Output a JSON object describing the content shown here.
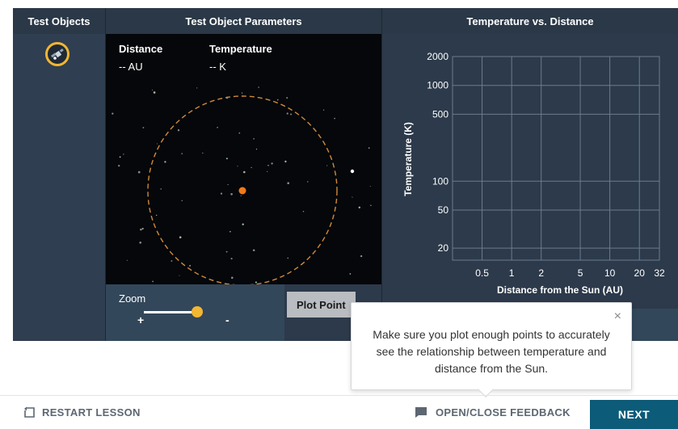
{
  "headers": {
    "test_objects": "Test Objects",
    "parameters": "Test Object Parameters",
    "chart": "Temperature vs. Distance"
  },
  "parameters": {
    "distance_label": "Distance",
    "distance_value": "-- AU",
    "temperature_label": "Temperature",
    "temperature_value": "-- K"
  },
  "zoom": {
    "label": "Zoom",
    "plus": "+",
    "minus": "-",
    "level": 0.92
  },
  "plot_button": "Plot Point",
  "chart_data": {
    "type": "scatter",
    "title": "",
    "xlabel": "Distance from the Sun (AU)",
    "ylabel": "Temperature (K)",
    "x_scale": "log",
    "y_scale": "log",
    "xlim": [
      0.25,
      32
    ],
    "ylim": [
      15,
      2000
    ],
    "x_ticks": [
      0.5,
      1,
      2,
      5,
      10,
      20,
      32
    ],
    "x_tick_labels": [
      "0.5",
      "1",
      "2",
      "5",
      "10",
      "20",
      "32"
    ],
    "y_ticks": [
      20,
      50,
      100,
      500,
      1000,
      2000
    ],
    "y_tick_labels": [
      "20",
      "50",
      "100",
      "500",
      "1000",
      "2000"
    ],
    "grid": true,
    "series": []
  },
  "tooltip": {
    "text": "Make sure you plot enough points to accurately see the relationship between temperature and distance from the Sun.",
    "close": "×"
  },
  "footer": {
    "restart": "RESTART LESSON",
    "feedback": "OPEN/CLOSE FEEDBACK",
    "next": "NEXT"
  },
  "colors": {
    "accent": "#f2b632",
    "panel": "#2c3a4b",
    "next_button": "#0c5b78",
    "sun": "#f07a1a"
  },
  "icons": {
    "test_object": "satellite-icon",
    "restart": "restart-icon",
    "feedback": "chat-icon",
    "close": "close-icon"
  }
}
